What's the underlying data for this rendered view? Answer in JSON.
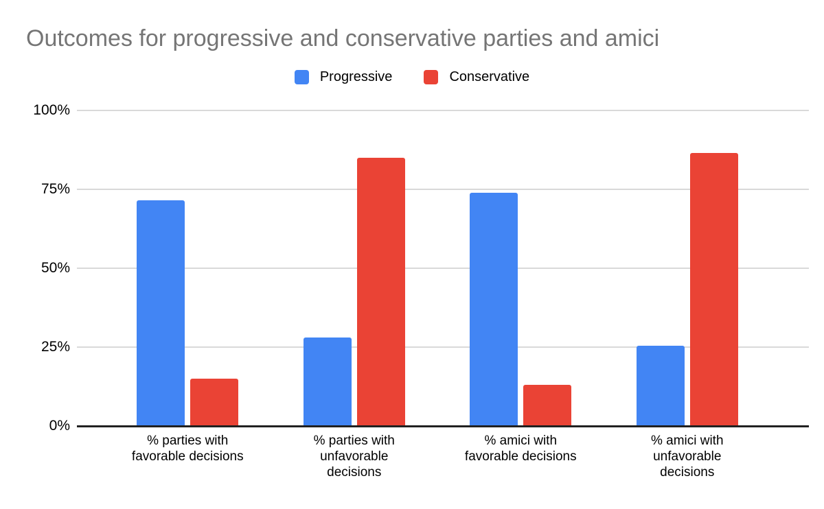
{
  "chart_data": {
    "type": "bar",
    "title": "Outcomes for progressive and conservative parties and amici",
    "categories": [
      "% parties with\nfavorable decisions",
      "% parties with\nunfavorable\ndecisions",
      "% amici with\nfavorable decisions",
      "% amici with\nunfavorable\ndecisions"
    ],
    "series": [
      {
        "name": "Progressive",
        "color": "#4285f4",
        "values": [
          71.5,
          28,
          74,
          25.5
        ]
      },
      {
        "name": "Conservative",
        "color": "#ea4335",
        "values": [
          15,
          85,
          13,
          86.5
        ]
      }
    ],
    "y_ticks": [
      {
        "label": "100%",
        "value": 100
      },
      {
        "label": "75%",
        "value": 75
      },
      {
        "label": "50%",
        "value": 50
      },
      {
        "label": "25%",
        "value": 25
      },
      {
        "label": "0%",
        "value": 0
      }
    ],
    "ylim": [
      0,
      100
    ],
    "xlabel": "",
    "ylabel": "",
    "grid": true,
    "legend_position": "top-center",
    "colors": {
      "title_text": "#757575",
      "gridline": "#d9d9d9",
      "axis_line": "#212121",
      "label_text": "#000000",
      "background": "#ffffff"
    }
  }
}
